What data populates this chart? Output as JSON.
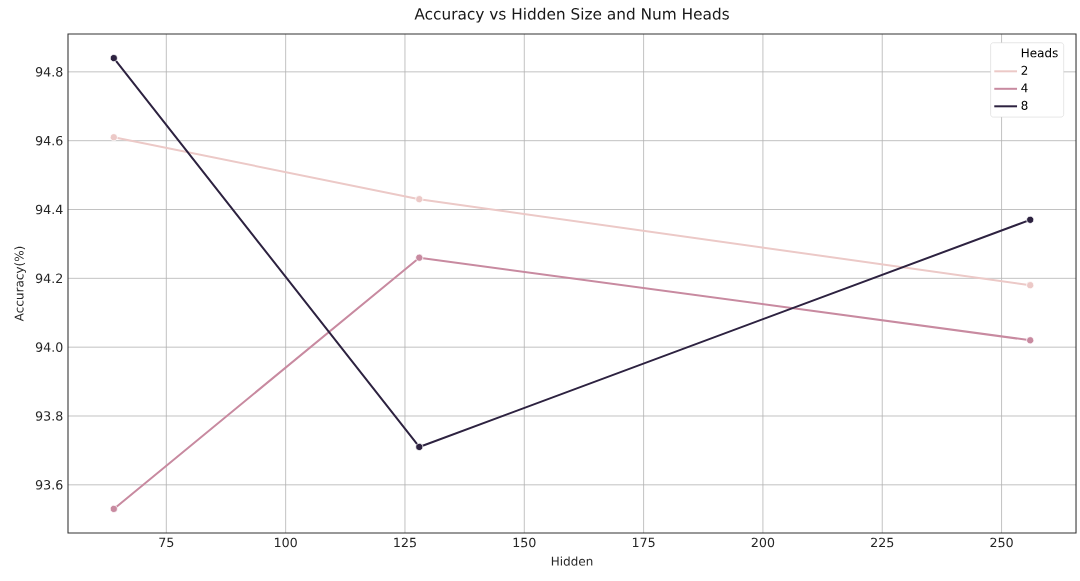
{
  "chart_data": {
    "type": "line",
    "title": "Accuracy vs Hidden Size and Num Heads",
    "xlabel": "Hidden",
    "ylabel": "Accuracy(%)",
    "legend_title": "Heads",
    "x": [
      64,
      128,
      256
    ],
    "series": [
      {
        "name": "2",
        "color": "#ecc9c7",
        "values": [
          94.61,
          94.43,
          94.18
        ]
      },
      {
        "name": "4",
        "color": "#c88aa0",
        "values": [
          93.53,
          94.26,
          94.02
        ]
      },
      {
        "name": "8",
        "color": "#2d2240",
        "values": [
          94.84,
          93.71,
          94.37
        ]
      }
    ],
    "xlim": [
      54.4,
      265.6
    ],
    "ylim": [
      93.46,
      94.91
    ],
    "xticks": [
      75,
      100,
      125,
      150,
      175,
      200,
      225,
      250
    ],
    "yticks": [
      93.6,
      93.8,
      {
        "value": 94.0,
        "label": "94.0"
      },
      94.2,
      94.4,
      94.6,
      94.8
    ],
    "grid": true,
    "legend": "top right",
    "marker": "circle",
    "line_style": "solid"
  }
}
